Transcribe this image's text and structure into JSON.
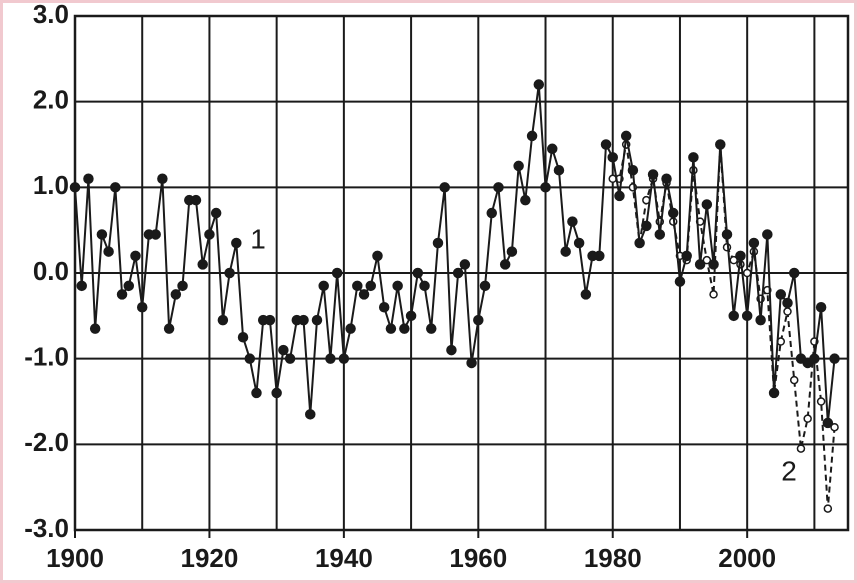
{
  "chart_data": {
    "type": "line",
    "x": [
      1900,
      1901,
      1902,
      1903,
      1904,
      1905,
      1906,
      1907,
      1908,
      1909,
      1910,
      1911,
      1912,
      1913,
      1914,
      1915,
      1916,
      1917,
      1918,
      1919,
      1920,
      1921,
      1922,
      1923,
      1924,
      1925,
      1926,
      1927,
      1928,
      1929,
      1930,
      1931,
      1932,
      1933,
      1934,
      1935,
      1936,
      1937,
      1938,
      1939,
      1940,
      1941,
      1942,
      1943,
      1944,
      1945,
      1946,
      1947,
      1948,
      1949,
      1950,
      1951,
      1952,
      1953,
      1954,
      1955,
      1956,
      1957,
      1958,
      1959,
      1960,
      1961,
      1962,
      1963,
      1964,
      1965,
      1966,
      1967,
      1968,
      1969,
      1970,
      1971,
      1972,
      1973,
      1974,
      1975,
      1976,
      1977,
      1978,
      1979,
      1980,
      1981,
      1982,
      1983,
      1984,
      1985,
      1986,
      1987,
      1988,
      1989,
      1990,
      1991,
      1992,
      1993,
      1994,
      1995,
      1996,
      1997,
      1998,
      1999,
      2000,
      2001,
      2002,
      2003,
      2004,
      2005,
      2006,
      2007,
      2008,
      2009,
      2010,
      2011,
      2012,
      2013
    ],
    "series": [
      {
        "name": "1",
        "color": "#1a1a1a",
        "values": [
          1.0,
          -0.15,
          1.1,
          -0.65,
          0.45,
          0.25,
          1.0,
          -0.25,
          -0.15,
          0.2,
          -0.4,
          0.45,
          0.45,
          1.1,
          -0.65,
          -0.25,
          -0.15,
          0.85,
          0.85,
          0.1,
          0.45,
          0.7,
          -0.55,
          0.0,
          0.35,
          -0.75,
          -1.0,
          -1.4,
          -0.55,
          -0.55,
          -1.4,
          -0.9,
          -1.0,
          -0.55,
          -0.55,
          -1.65,
          -0.55,
          -0.15,
          -1.0,
          0.0,
          -1.0,
          -0.65,
          -0.15,
          -0.25,
          -0.15,
          0.2,
          -0.4,
          -0.65,
          -0.15,
          -0.65,
          -0.5,
          0.0,
          -0.15,
          -0.65,
          0.35,
          1.0,
          -0.9,
          0.0,
          0.1,
          -1.05,
          -0.55,
          -0.15,
          0.7,
          1.0,
          0.1,
          0.25,
          1.25,
          0.85,
          1.6,
          2.2,
          1.0,
          1.45,
          1.2,
          0.25,
          0.6,
          0.35,
          -0.25,
          0.2,
          0.2,
          1.5,
          1.35,
          0.9,
          1.6,
          1.2,
          0.35,
          0.55,
          1.15,
          0.45,
          1.1,
          0.7,
          -0.1,
          0.2,
          1.35,
          0.1,
          0.8,
          0.1,
          1.5,
          0.45,
          -0.5,
          0.2,
          -0.5,
          0.35,
          -0.55,
          0.45,
          -1.4,
          -0.25,
          -0.35,
          0.0,
          -1.0,
          -1.05,
          -1.0,
          -0.4,
          -1.75,
          -1.0
        ]
      },
      {
        "name": "2",
        "color": "#1a1a1a",
        "values": [
          null,
          null,
          null,
          null,
          null,
          null,
          null,
          null,
          null,
          null,
          null,
          null,
          null,
          null,
          null,
          null,
          null,
          null,
          null,
          null,
          null,
          null,
          null,
          null,
          null,
          null,
          null,
          null,
          null,
          null,
          null,
          null,
          null,
          null,
          null,
          null,
          null,
          null,
          null,
          null,
          null,
          null,
          null,
          null,
          null,
          null,
          null,
          null,
          null,
          null,
          null,
          null,
          null,
          null,
          null,
          null,
          null,
          null,
          null,
          null,
          null,
          null,
          null,
          null,
          null,
          null,
          null,
          null,
          null,
          null,
          null,
          null,
          null,
          null,
          null,
          null,
          null,
          null,
          null,
          null,
          1.1,
          1.1,
          1.5,
          1.0,
          0.35,
          0.85,
          1.1,
          0.6,
          1.05,
          0.6,
          0.2,
          0.15,
          1.2,
          0.6,
          0.15,
          -0.25,
          1.5,
          0.3,
          0.15,
          0.1,
          0.0,
          0.25,
          -0.3,
          -0.2,
          -1.4,
          -0.8,
          -0.45,
          -1.25,
          -2.05,
          -1.7,
          -0.8,
          -1.5,
          -2.75,
          -1.8
        ]
      }
    ],
    "xlim": [
      1900,
      2015
    ],
    "xticks": [
      1900,
      1920,
      1940,
      1960,
      1980,
      2000
    ],
    "xgrid": [
      1900,
      1910,
      1920,
      1930,
      1940,
      1950,
      1960,
      1970,
      1980,
      1990,
      2000,
      2010
    ],
    "ylim": [
      -3,
      3
    ],
    "yticks": [
      {
        "value": 3,
        "label": "3.0"
      },
      {
        "value": 2,
        "label": "2.0"
      },
      {
        "value": 1,
        "label": "1.0"
      },
      {
        "value": 0,
        "label": "0.0"
      },
      {
        "value": -1,
        "label": "-1.0"
      },
      {
        "value": -2,
        "label": "-2.0"
      },
      {
        "value": -3,
        "label": "-3.0"
      }
    ],
    "grid": true
  }
}
